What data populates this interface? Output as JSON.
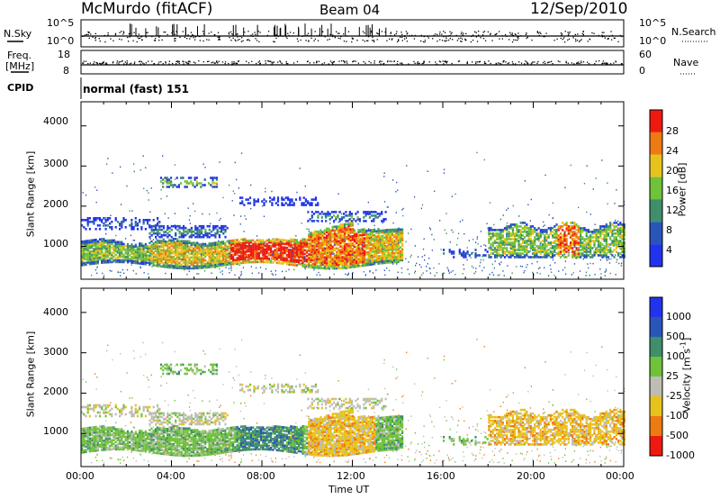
{
  "header": {
    "station": "McMurdo (fitACF)",
    "beam": "Beam 04",
    "date": "12/Sep/2010"
  },
  "top_panels": {
    "nsky_label": "N.Sky",
    "nsky_ticks": [
      "10^5",
      "10^0"
    ],
    "nsearch_label": "N.Search",
    "nsearch_ticks": [
      "10^5",
      "10^0"
    ],
    "freq_label_1": "Freq.",
    "freq_label_2": "[MHz]",
    "freq_ticks": [
      "18",
      "8"
    ],
    "nave_label": "Nave",
    "nave_ticks": [
      "60",
      "0"
    ],
    "cpid_label": "CPID",
    "cpid_value": "normal (fast) 151"
  },
  "chart_data": [
    {
      "type": "heatmap",
      "name": "power",
      "ylabel": "Slant Range [km]",
      "ylim": [
        180,
        4600
      ],
      "yticks": [
        "4000",
        "3000",
        "2000",
        "1000"
      ],
      "xlim": [
        0,
        24
      ],
      "colorbar_label": "Power [dB]",
      "colorbar_ticks": [
        "28",
        "24",
        "20",
        "16",
        "12",
        "8",
        "4"
      ],
      "colorbar_colors": [
        "#2233ee",
        "#2a55b8",
        "#3e8f6a",
        "#6fc23a",
        "#e8c21c",
        "#ee7a12",
        "#ee1a10"
      ]
    },
    {
      "type": "heatmap",
      "name": "velocity",
      "ylabel": "Slant Range [km]",
      "ylim": [
        180,
        4600
      ],
      "yticks": [
        "4000",
        "3000",
        "2000",
        "1000"
      ],
      "xlim": [
        0,
        24
      ],
      "xlabel": "Time UT",
      "xticks": [
        "00:00",
        "04:00",
        "08:00",
        "12:00",
        "16:00",
        "20:00",
        "00:00"
      ],
      "colorbar_label": "Velocity [m s",
      "colorbar_unit_sup": "-1",
      "colorbar_ticks": [
        "1000",
        "500",
        "100",
        "25",
        "-25",
        "-100",
        "-500",
        "-1000"
      ],
      "colorbar_colors": [
        "#2233ee",
        "#2a55b8",
        "#3e8f6a",
        "#6fc23a",
        "#bdbdb4",
        "#e8c21c",
        "#ee7a12",
        "#ee1a10"
      ]
    }
  ]
}
